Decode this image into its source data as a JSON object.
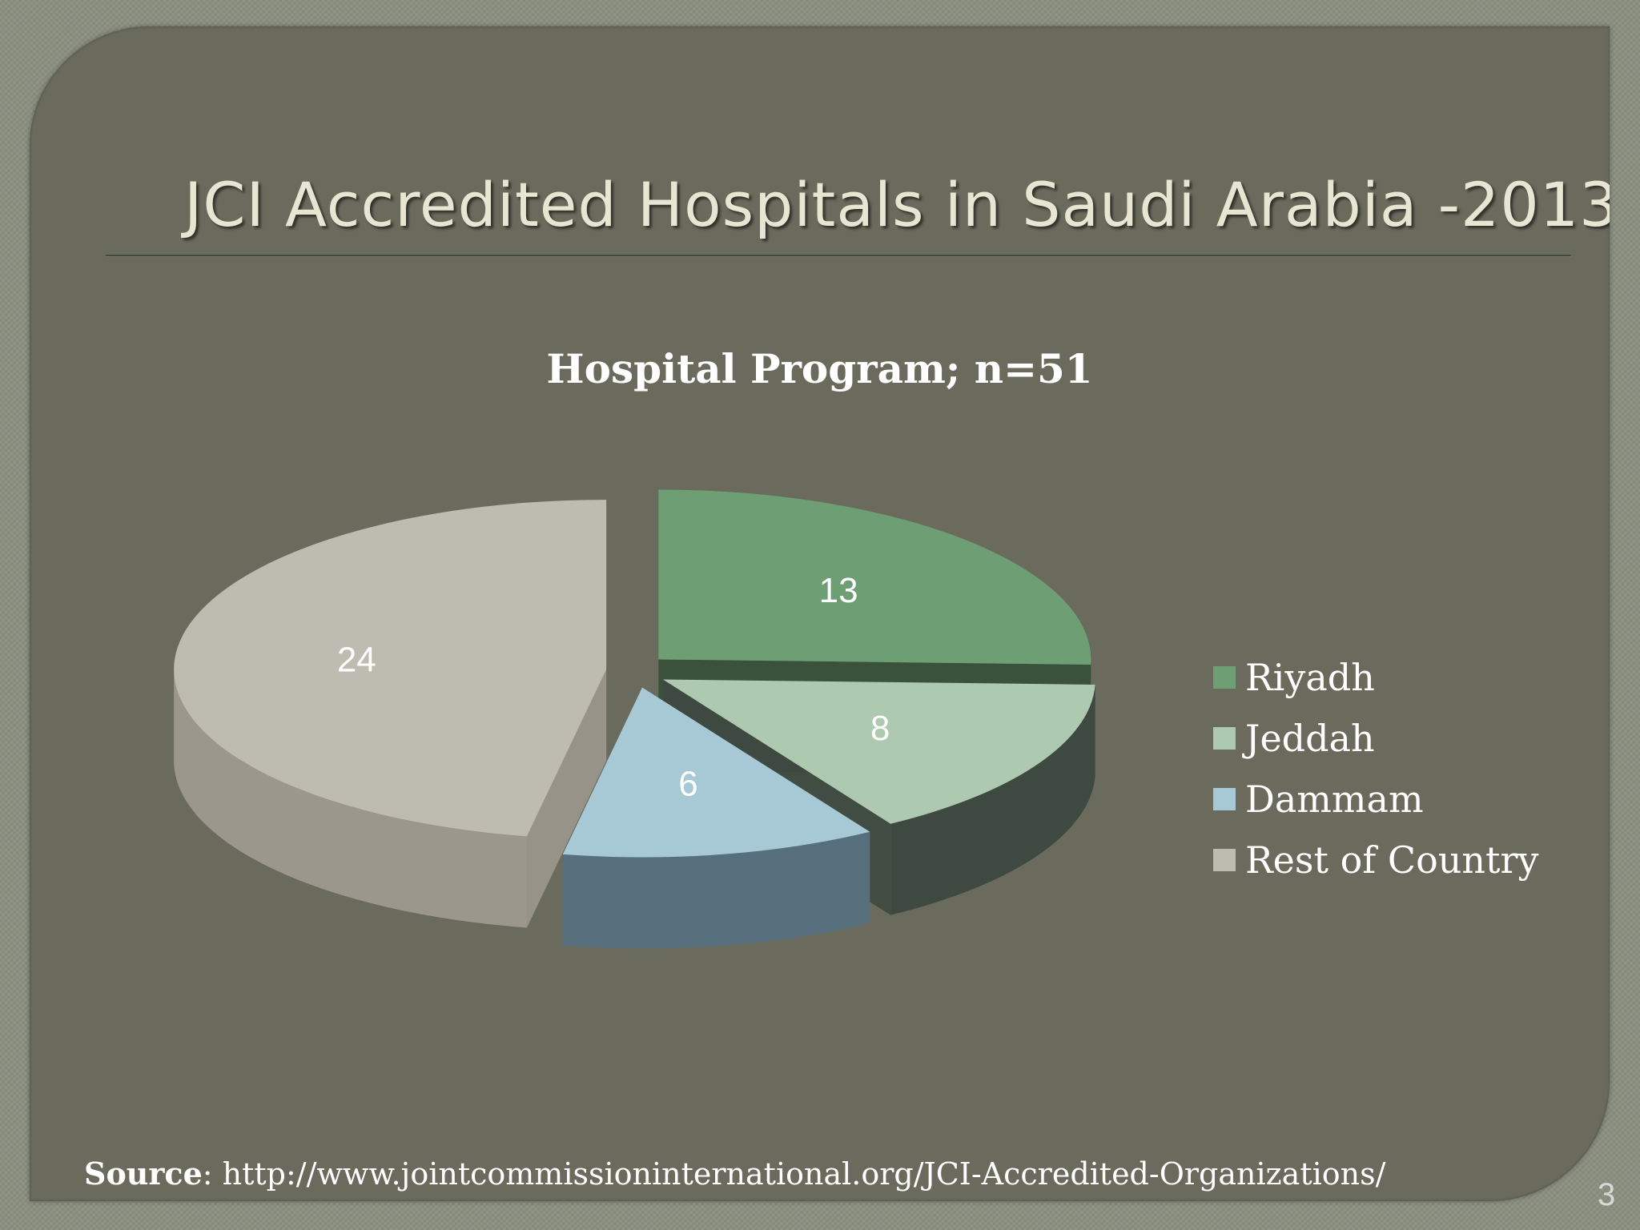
{
  "slide": {
    "title": "JCI Accredited Hospitals in Saudi Arabia -2013",
    "source_label": "Source",
    "source_url": ": http://www.jointcommissioninternational.org/JCI-Accredited-Organizations/",
    "page_number": "3"
  },
  "chart_data": {
    "type": "pie",
    "title": "Hospital Program;  n=51",
    "three_d": true,
    "exploded": true,
    "legend_position": "right",
    "categories": [
      "Riyadh",
      "Jeddah",
      "Dammam",
      "Rest of Country"
    ],
    "values": [
      13,
      8,
      6,
      24
    ],
    "colors": [
      "#6e9f74",
      "#adc9af",
      "#a7c9d5",
      "#bebbb0"
    ],
    "side_colors": [
      "#364f3a",
      "#3e4a41",
      "#576f7c",
      "#9c978c"
    ]
  }
}
